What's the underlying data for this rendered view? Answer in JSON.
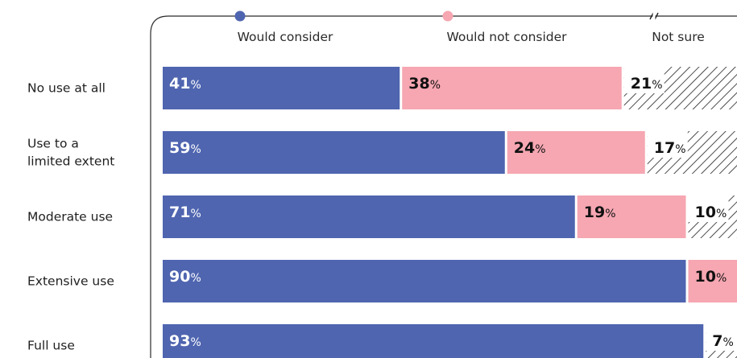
{
  "chart_data": {
    "type": "bar",
    "stacked": true,
    "orientation": "horizontal",
    "categories": [
      "No use at all",
      "Use to a limited extent",
      "Moderate use",
      "Extensive use",
      "Full use"
    ],
    "category_lines": [
      [
        "No use at all"
      ],
      [
        "Use to a",
        "limited extent"
      ],
      [
        "Moderate use"
      ],
      [
        "Extensive use"
      ],
      [
        "Full use"
      ]
    ],
    "series": [
      {
        "name": "Would consider",
        "values": [
          41,
          59,
          71,
          90,
          93
        ],
        "color": "#4f65b0",
        "pattern": "solid"
      },
      {
        "name": "Would not consider",
        "values": [
          38,
          24,
          19,
          10,
          0
        ],
        "color": "#f6a7b2",
        "pattern": "solid"
      },
      {
        "name": "Not sure",
        "values": [
          21,
          17,
          10,
          0,
          7
        ],
        "color": "#1f1f1f",
        "pattern": "hatch"
      }
    ],
    "value_suffix": "%",
    "legend_position": "top",
    "xlim": [
      0,
      100
    ]
  }
}
